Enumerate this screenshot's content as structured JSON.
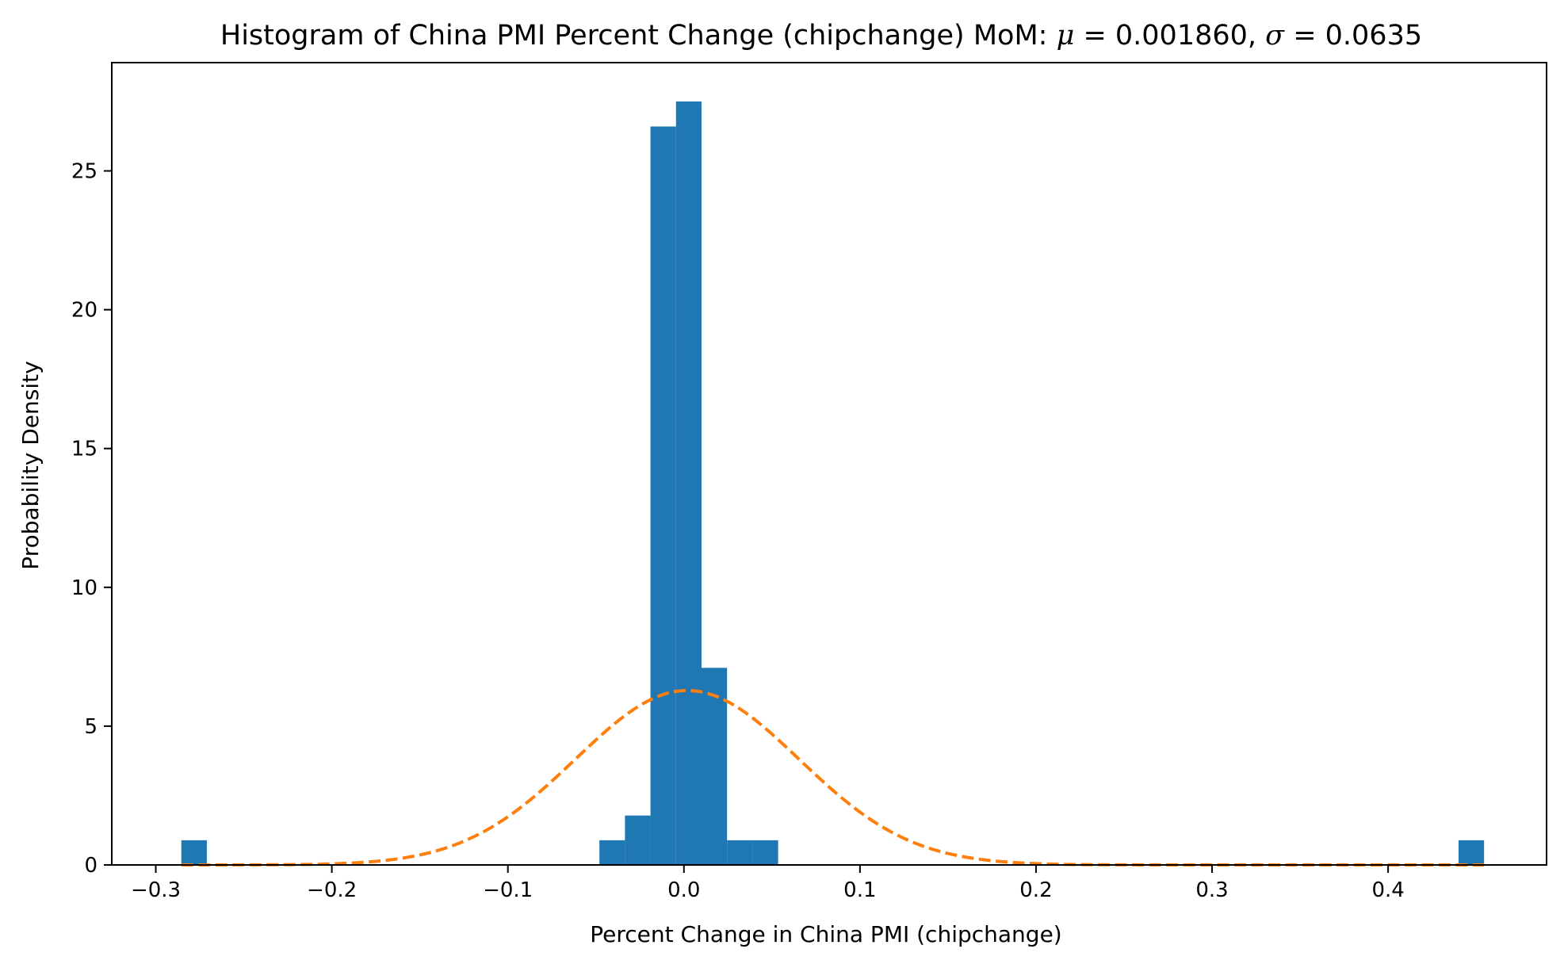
{
  "chart_data": {
    "type": "bar",
    "title": "Histogram of China PMI Percent Change (chipchange) MoM: ",
    "title_mu_symbol": "μ",
    "title_mu_value": " = 0.001860, ",
    "title_sigma_symbol": "σ",
    "title_sigma_value": " = 0.0635",
    "xlabel": "Percent Change in China PMI (chipchange)",
    "ylabel": "Probability Density",
    "xlim": [
      -0.325,
      0.49
    ],
    "ylim": [
      0,
      28.9
    ],
    "x_ticks": [
      -0.3,
      -0.2,
      -0.1,
      0.0,
      0.1,
      0.2,
      0.3,
      0.4
    ],
    "x_tick_labels": [
      "−0.3",
      "−0.2",
      "−0.1",
      "0.0",
      "0.1",
      "0.2",
      "0.3",
      "0.4"
    ],
    "y_ticks": [
      0,
      5,
      10,
      15,
      20,
      25
    ],
    "y_tick_labels": [
      "0",
      "5",
      "10",
      "15",
      "20",
      "25"
    ],
    "bar_color": "#1f77b4",
    "bins": [
      {
        "x0": -0.2855,
        "x1": -0.271,
        "value": 0.89
      },
      {
        "x0": -0.048,
        "x1": -0.0335,
        "value": 0.89
      },
      {
        "x0": -0.0335,
        "x1": -0.019,
        "value": 1.78
      },
      {
        "x0": -0.019,
        "x1": -0.0045,
        "value": 26.6
      },
      {
        "x0": -0.0045,
        "x1": 0.01,
        "value": 27.5
      },
      {
        "x0": 0.01,
        "x1": 0.0245,
        "value": 7.1
      },
      {
        "x0": 0.0245,
        "x1": 0.039,
        "value": 0.89
      },
      {
        "x0": 0.039,
        "x1": 0.0535,
        "value": 0.89
      },
      {
        "x0": 0.44,
        "x1": 0.4545,
        "value": 0.89
      }
    ],
    "series": [
      {
        "type": "line",
        "style": "dashed",
        "color": "#ff7f0e",
        "distribution": "normal",
        "mu": 0.00186,
        "sigma": 0.0635,
        "x_range": [
          -0.2855,
          0.4545
        ]
      }
    ],
    "grid": false,
    "legend": "none"
  }
}
